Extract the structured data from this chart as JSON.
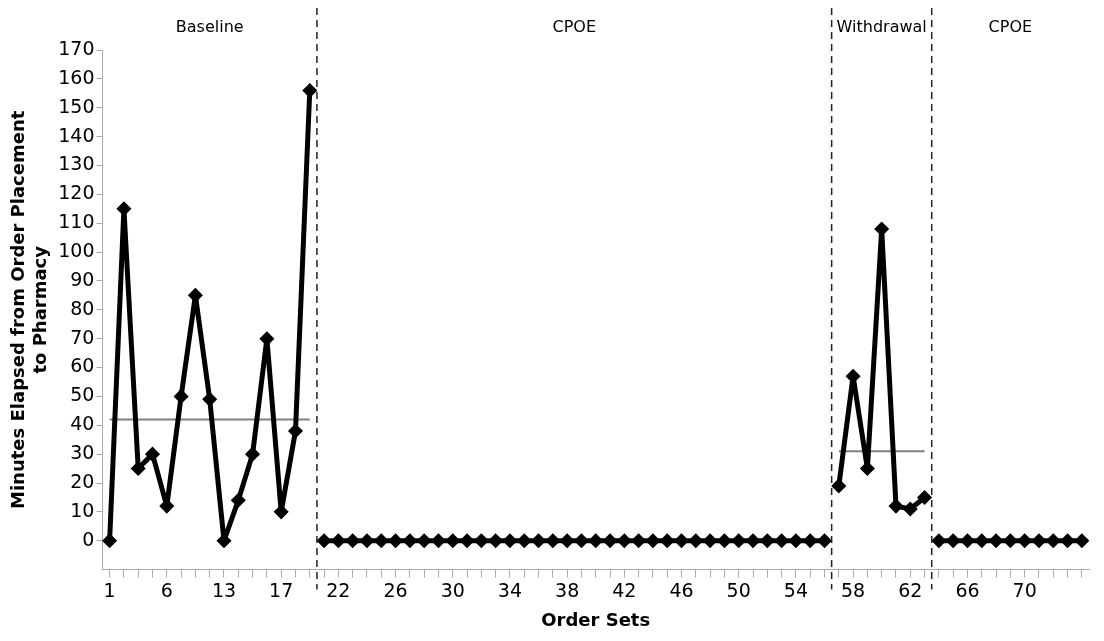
{
  "chart_data": {
    "type": "line",
    "xlabel": "Order Sets",
    "ylabel": "Minutes Elapsed from Order Placement to Pharmacy",
    "categories": [
      "1",
      null,
      null,
      null,
      "6",
      null,
      null,
      null,
      "13",
      null,
      null,
      null,
      "17",
      null,
      null,
      null,
      "22",
      null,
      null,
      null,
      "26",
      null,
      null,
      null,
      "30",
      null,
      null,
      null,
      "34",
      null,
      null,
      null,
      "38",
      null,
      null,
      null,
      "42",
      null,
      null,
      null,
      "46",
      null,
      null,
      null,
      "50",
      null,
      null,
      null,
      "54",
      null,
      null,
      null,
      "58",
      null,
      null,
      null,
      "62",
      null,
      null,
      null,
      "66",
      null,
      null,
      null,
      "70",
      null,
      null,
      null,
      null
    ],
    "series": [
      {
        "color": "#000000",
        "values": [
          0,
          115,
          25,
          30,
          12,
          50,
          85,
          49,
          0,
          14,
          30,
          70,
          10,
          38,
          156,
          null,
          null,
          null,
          null,
          null,
          null,
          null,
          null,
          null,
          null,
          null,
          null,
          null,
          null,
          null,
          null,
          null,
          null,
          null,
          null,
          null,
          null,
          null,
          null,
          null,
          null,
          null,
          null,
          null,
          null,
          null,
          null,
          null,
          null,
          null,
          null,
          null,
          null,
          null,
          null,
          null,
          null,
          null,
          null,
          null,
          null,
          null,
          null,
          null,
          null,
          null,
          null,
          null,
          null
        ]
      },
      {
        "color": "#000000",
        "values": [
          null,
          null,
          null,
          null,
          null,
          null,
          null,
          null,
          null,
          null,
          null,
          null,
          null,
          null,
          null,
          0,
          0,
          0,
          0,
          0,
          0,
          0,
          0,
          0,
          0,
          0,
          0,
          0,
          0,
          0,
          0,
          0,
          0,
          0,
          0,
          0,
          0,
          0,
          0,
          0,
          0,
          0,
          0,
          0,
          0,
          0,
          0,
          0,
          0,
          0,
          0,
          null,
          null,
          null,
          null,
          null,
          null,
          null,
          null,
          null,
          null,
          null,
          null,
          null,
          null,
          null,
          null,
          null,
          null
        ]
      },
      {
        "color": "#000000",
        "values": [
          null,
          null,
          null,
          null,
          null,
          null,
          null,
          null,
          null,
          null,
          null,
          null,
          null,
          null,
          null,
          null,
          null,
          null,
          null,
          null,
          null,
          null,
          null,
          null,
          null,
          null,
          null,
          null,
          null,
          null,
          null,
          null,
          null,
          null,
          null,
          null,
          null,
          null,
          null,
          null,
          null,
          null,
          null,
          null,
          null,
          null,
          null,
          null,
          null,
          null,
          null,
          19,
          57,
          25,
          108,
          12,
          11,
          15,
          null,
          null,
          null,
          null,
          null,
          null,
          null,
          null,
          null,
          null,
          null
        ]
      },
      {
        "color": "#000000",
        "values": [
          null,
          null,
          null,
          null,
          null,
          null,
          null,
          null,
          null,
          null,
          null,
          null,
          null,
          null,
          null,
          null,
          null,
          null,
          null,
          null,
          null,
          null,
          null,
          null,
          null,
          null,
          null,
          null,
          null,
          null,
          null,
          null,
          null,
          null,
          null,
          null,
          null,
          null,
          null,
          null,
          null,
          null,
          null,
          null,
          null,
          null,
          null,
          null,
          null,
          null,
          null,
          null,
          null,
          null,
          null,
          null,
          null,
          null,
          0,
          0,
          0,
          0,
          0,
          0,
          0,
          0,
          0,
          0,
          0
        ]
      },
      {
        "color": "#808080",
        "marker": "none",
        "values": [
          42,
          42,
          42,
          42,
          42,
          42,
          42,
          42,
          42,
          42,
          42,
          42,
          42,
          42,
          42,
          null,
          null,
          null,
          null,
          null,
          null,
          null,
          null,
          null,
          null,
          null,
          null,
          null,
          null,
          null,
          null,
          null,
          null,
          null,
          null,
          null,
          null,
          null,
          null,
          null,
          null,
          null,
          null,
          null,
          null,
          null,
          null,
          null,
          null,
          null,
          null,
          null,
          null,
          null,
          null,
          null,
          null,
          null,
          null,
          null,
          null,
          null,
          null,
          null,
          null,
          null,
          null,
          null,
          null
        ]
      },
      {
        "color": "#808080",
        "marker": "none",
        "values": [
          null,
          null,
          null,
          null,
          null,
          null,
          null,
          null,
          null,
          null,
          null,
          null,
          null,
          null,
          null,
          null,
          null,
          null,
          null,
          null,
          null,
          null,
          null,
          null,
          null,
          null,
          null,
          null,
          null,
          null,
          null,
          null,
          null,
          null,
          null,
          null,
          null,
          null,
          null,
          null,
          null,
          null,
          null,
          null,
          null,
          null,
          null,
          null,
          null,
          null,
          null,
          31,
          31,
          31,
          31,
          31,
          31,
          31,
          null,
          null,
          null,
          null,
          null,
          null,
          null,
          null,
          null,
          null,
          null
        ]
      }
    ],
    "annotations": [
      "Baseline",
      "CPOE",
      "Withdrawal",
      "CPOE"
    ],
    "ylim": [
      -10,
      170
    ],
    "yticks": [
      0,
      10,
      20,
      30,
      40,
      50,
      60,
      70,
      80,
      90,
      100,
      110,
      120,
      130,
      140,
      150,
      160,
      170
    ],
    "grid": false,
    "legend": false,
    "marker": "diamond",
    "line_style": "solid"
  }
}
